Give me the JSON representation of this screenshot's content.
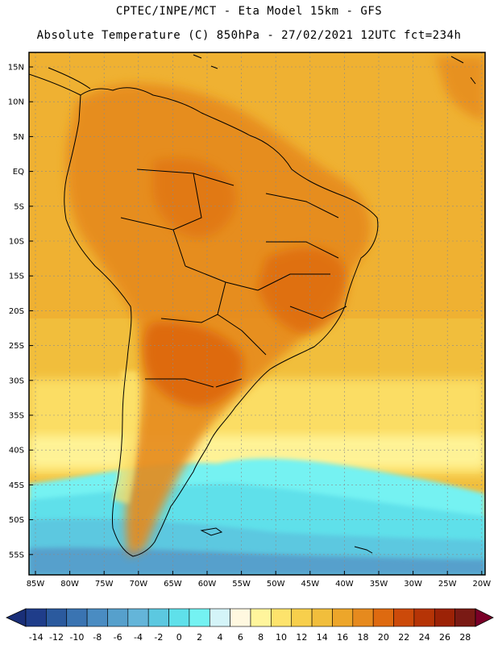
{
  "header": {
    "line1": "CPTEC/INPE/MCT -  Eta Model 15km - GFS",
    "line2": "Absolute Temperature (C) 850hPa - 27/02/2021 12UTC fct=234h"
  },
  "axes": {
    "lat_labels": [
      "15N",
      "10N",
      "5N",
      "EQ",
      "5S",
      "10S",
      "15S",
      "20S",
      "25S",
      "30S",
      "35S",
      "40S",
      "45S",
      "50S",
      "55S"
    ],
    "lon_labels": [
      "85W",
      "80W",
      "75W",
      "70W",
      "65W",
      "60W",
      "55W",
      "50W",
      "45W",
      "40W",
      "35W",
      "30W",
      "25W",
      "20W"
    ]
  },
  "colorbar": {
    "tick_labels": [
      "-14",
      "-12",
      "-10",
      "-8",
      "-6",
      "-4",
      "-2",
      "0",
      "2",
      "4",
      "6",
      "8",
      "10",
      "12",
      "14",
      "16",
      "18",
      "20",
      "22",
      "24",
      "26",
      "28"
    ],
    "colors": [
      "#1f3d8a",
      "#2b5a9e",
      "#3a74b2",
      "#4a8cc2",
      "#56a0cc",
      "#64b5d9",
      "#5cc8e0",
      "#5fe0ea",
      "#74f2f2",
      "#d4f4f8",
      "#fff8e0",
      "#fff59c",
      "#fde36c",
      "#f7cf4c",
      "#f1be3c",
      "#eda62a",
      "#e68a1e",
      "#de6a10",
      "#cc4a0a",
      "#b63406",
      "#9c2206",
      "#7a1a14"
    ],
    "low_arrow": "#1a2f78",
    "high_arrow": "#7a0028"
  },
  "map_colors": {
    "ocean_warm": "#f1be3c",
    "ocean_cool": "#fde36c",
    "land_hot": "#e68a1e",
    "land_very_hot": "#de6a10",
    "cold_deep": "#56a0cc",
    "cold": "#5fe0ea",
    "frame": "#000000",
    "coast": "#000000"
  }
}
